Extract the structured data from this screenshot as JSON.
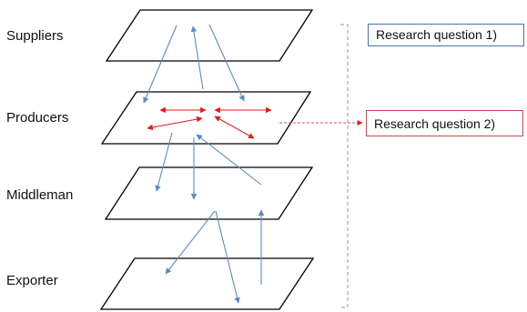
{
  "layers": [
    {
      "label": "Suppliers"
    },
    {
      "label": "Producers"
    },
    {
      "label": "Middleman"
    },
    {
      "label": "Exporter"
    }
  ],
  "research_questions": [
    {
      "label": "Research question 1)",
      "border_color": "#4a72b0"
    },
    {
      "label": "Research question 2)",
      "border_color": "#c0504d"
    }
  ],
  "colors": {
    "plane_stroke": "#000000",
    "flow_arrow": "#5b8ac6",
    "interaction_arrow": "#e01e1e",
    "bracket": "#9a9a9a",
    "connector": "#e05050"
  }
}
